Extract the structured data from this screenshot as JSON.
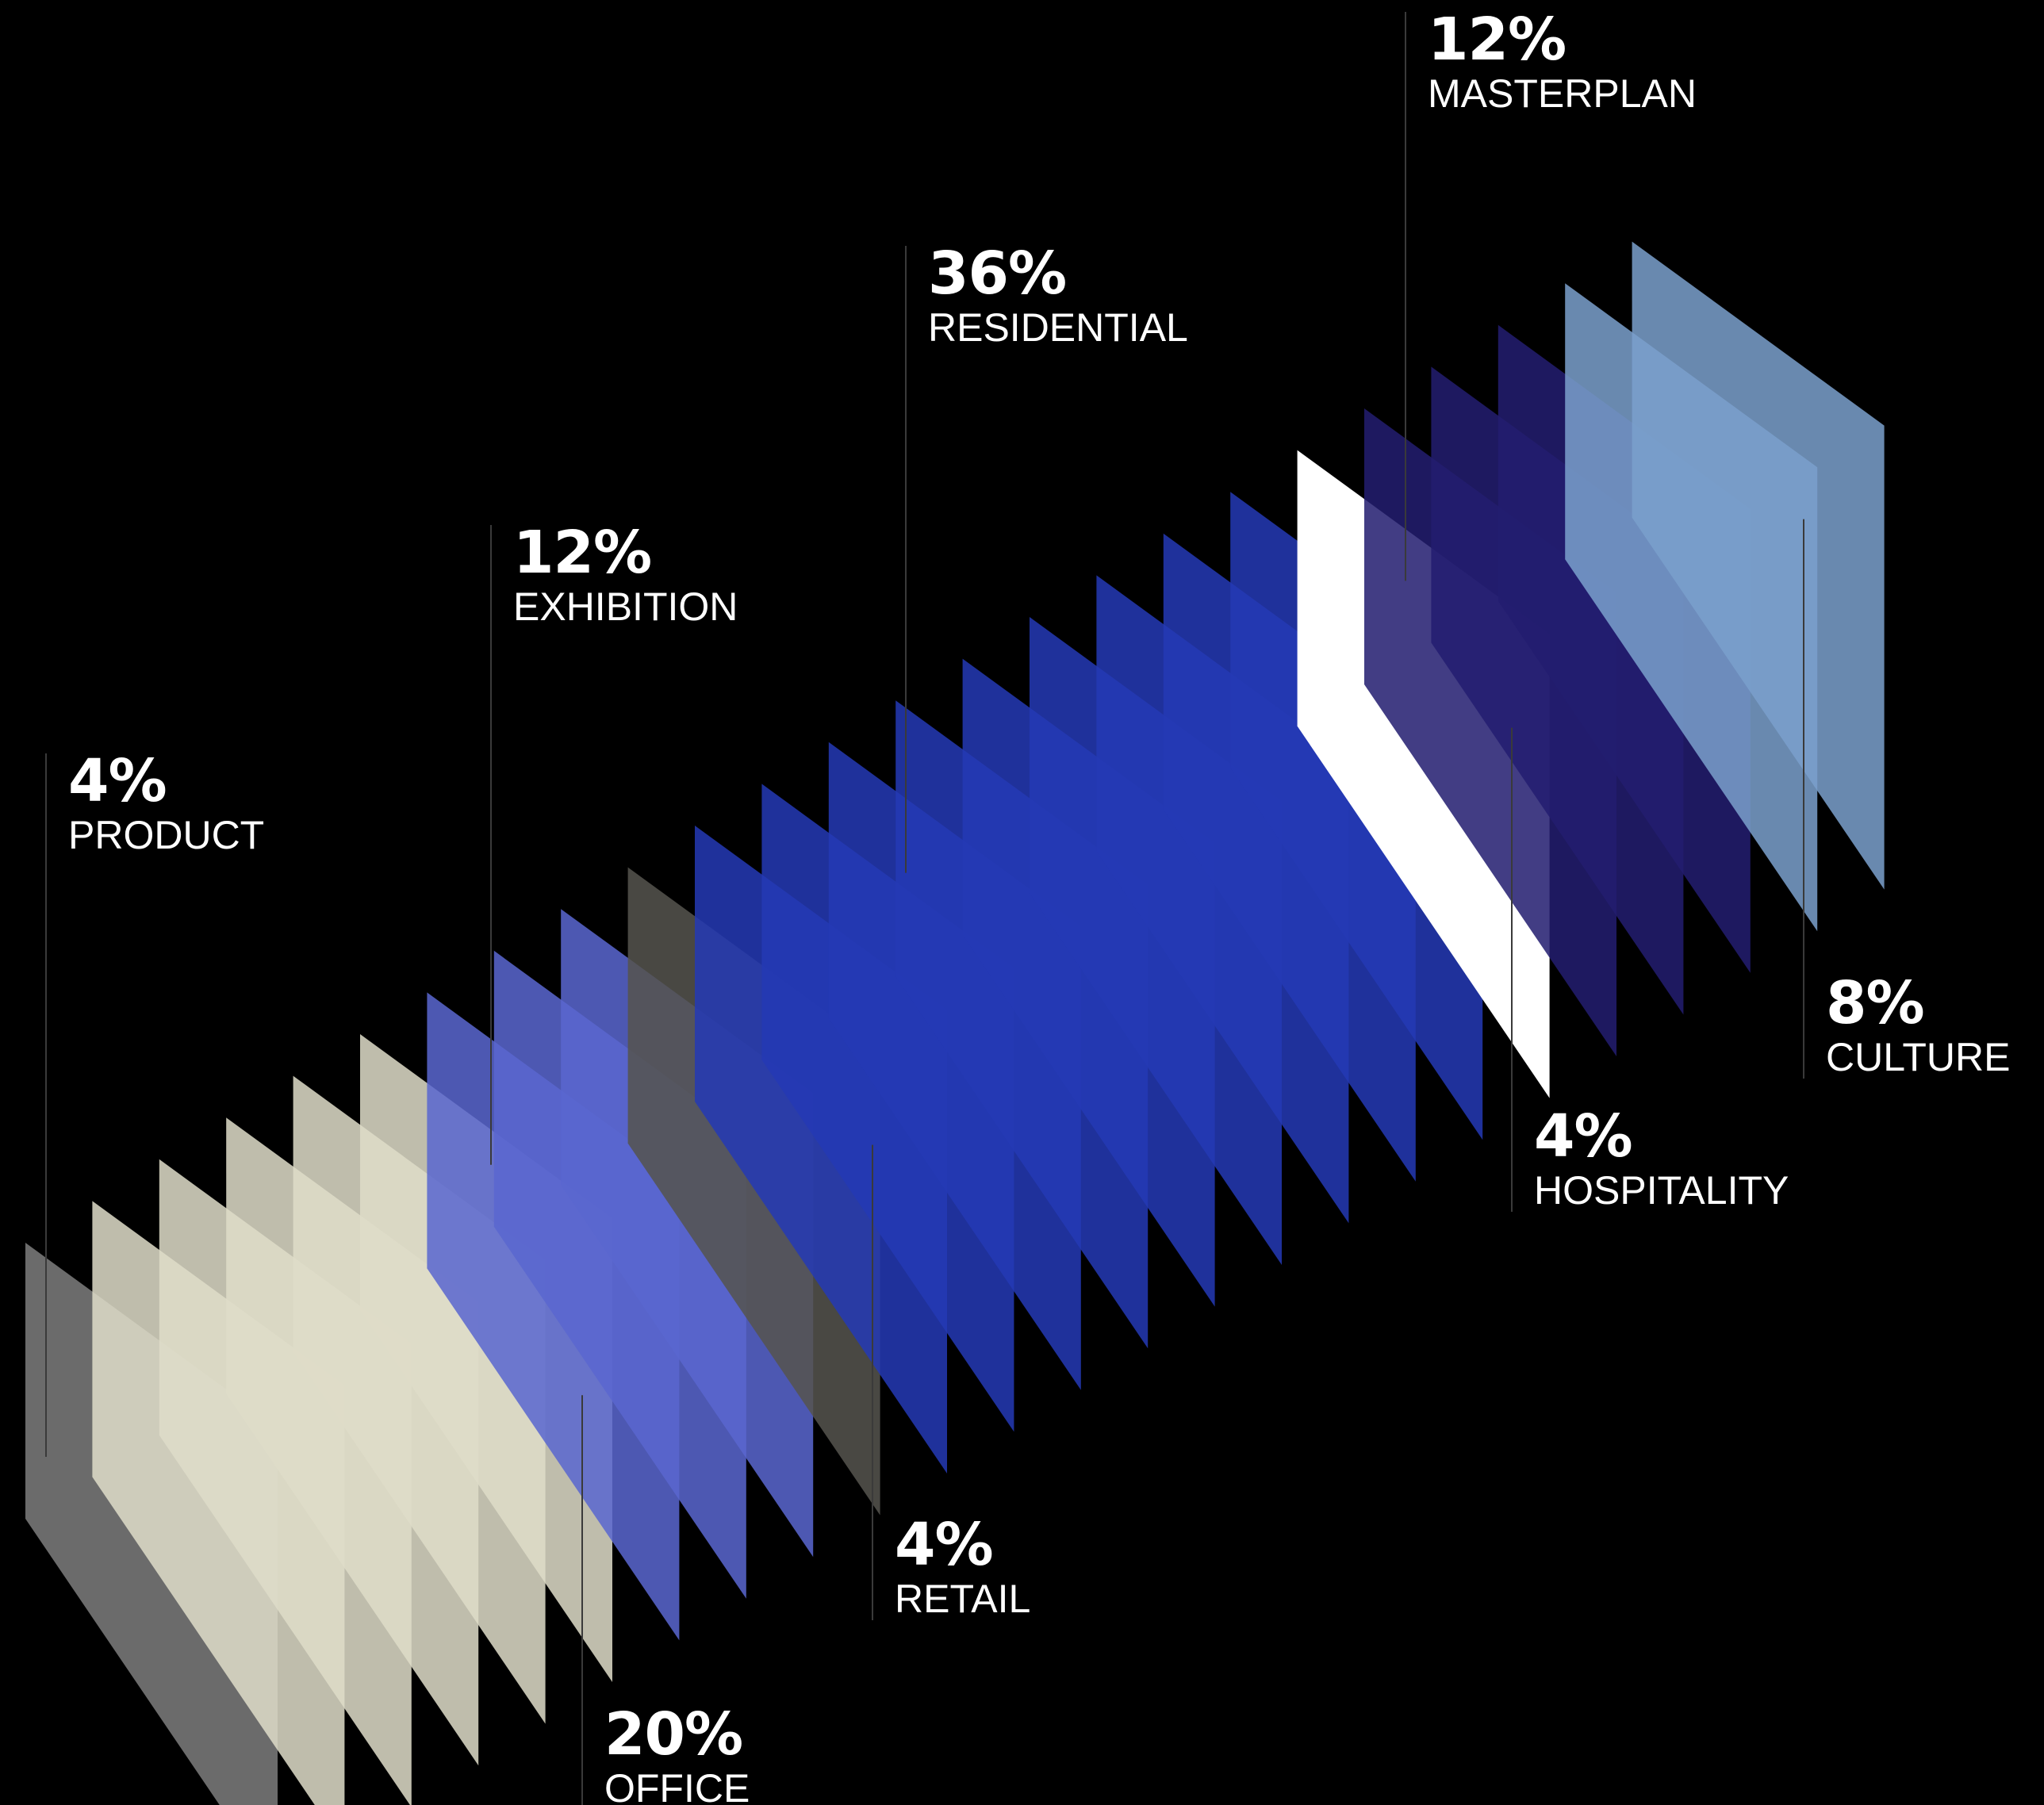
{
  "chart_data": {
    "type": "bar",
    "title": "",
    "unit": "%",
    "categories": [
      "PRODUCT",
      "OFFICE",
      "EXHIBITION",
      "RETAIL",
      "RESIDENTIAL",
      "HOSPITALITY",
      "MASTERPLAN",
      "CULTURE"
    ],
    "values": [
      4,
      20,
      12,
      4,
      36,
      4,
      12,
      8
    ],
    "value_labels": [
      "4%",
      "20%",
      "12%",
      "4%",
      "36%",
      "4%",
      "12%",
      "8%"
    ],
    "colors": [
      "#7d7d7d",
      "#dedcc8",
      "#5a66cf",
      "#55544e",
      "#2439b5",
      "#ffffff",
      "#231d70",
      "#7aa0cc"
    ],
    "label_positions": [
      "top",
      "bottom",
      "top",
      "bottom",
      "top",
      "bottom",
      "top",
      "bottom"
    ],
    "grid": false,
    "legend": "none"
  }
}
